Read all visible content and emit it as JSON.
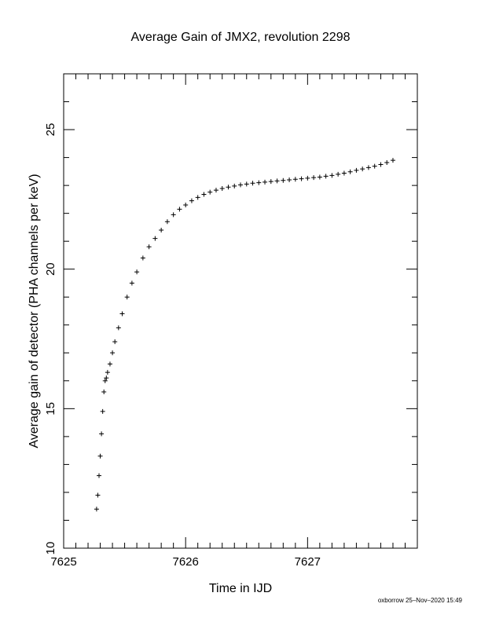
{
  "chart_data": {
    "type": "scatter",
    "title": "Average Gain of JMX2, revolution 2298",
    "xlabel": "Time in IJD",
    "ylabel": "Average gain of detector (PHA channels per keV)",
    "xlim": [
      7625,
      7627.9
    ],
    "ylim": [
      10,
      27
    ],
    "xticks": [
      7625,
      7626,
      7627
    ],
    "yticks": [
      10,
      15,
      20,
      25
    ],
    "x_tick_labels": [
      "7625",
      "7626",
      "7627"
    ],
    "y_tick_labels": [
      "10",
      "15",
      "20",
      "25"
    ],
    "marker": "+",
    "grid": false,
    "series": [
      {
        "x": [
          7625.27,
          7625.28,
          7625.29,
          7625.3,
          7625.31,
          7625.32,
          7625.33,
          7625.34,
          7625.35,
          7625.36,
          7625.38,
          7625.4,
          7625.42,
          7625.45,
          7625.48,
          7625.52,
          7625.56,
          7625.6,
          7625.65,
          7625.7,
          7625.75,
          7625.8,
          7625.85,
          7625.9,
          7625.95,
          7626.0,
          7626.05,
          7626.1,
          7626.15,
          7626.2,
          7626.25,
          7626.3,
          7626.35,
          7626.4,
          7626.45,
          7626.5,
          7626.55,
          7626.6,
          7626.65,
          7626.7,
          7626.75,
          7626.8,
          7626.85,
          7626.9,
          7626.95,
          7627.0,
          7627.05,
          7627.1,
          7627.15,
          7627.2,
          7627.25,
          7627.3,
          7627.35,
          7627.4,
          7627.45,
          7627.5,
          7627.55,
          7627.6,
          7627.65,
          7627.7
        ],
        "y": [
          11.4,
          11.9,
          12.6,
          13.3,
          14.1,
          14.9,
          15.6,
          16.0,
          16.1,
          16.3,
          16.6,
          17.0,
          17.4,
          17.9,
          18.4,
          19.0,
          19.5,
          19.9,
          20.4,
          20.8,
          21.1,
          21.4,
          21.7,
          21.95,
          22.15,
          22.3,
          22.45,
          22.57,
          22.68,
          22.76,
          22.83,
          22.89,
          22.94,
          22.98,
          23.02,
          23.05,
          23.08,
          23.1,
          23.12,
          23.14,
          23.16,
          23.18,
          23.2,
          23.22,
          23.24,
          23.26,
          23.28,
          23.3,
          23.33,
          23.36,
          23.4,
          23.44,
          23.49,
          23.54,
          23.59,
          23.64,
          23.69,
          23.75,
          23.82,
          23.9
        ]
      }
    ]
  },
  "footer_text": "oxborrow 25–Nov–2020 15:49"
}
